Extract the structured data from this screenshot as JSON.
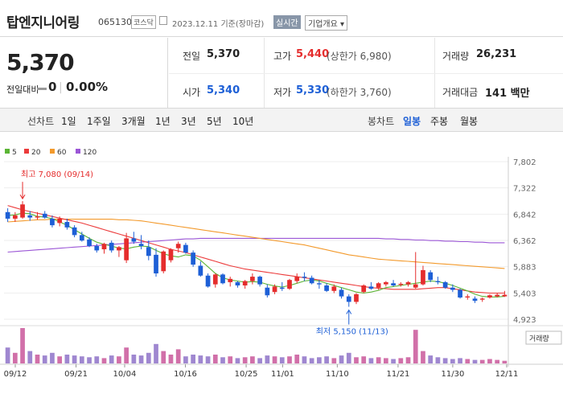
{
  "header": {
    "name": "탑엔지니어링",
    "code": "065130",
    "market": "코스닥",
    "date": "2023.12.11",
    "date_suffix": "기준(장마감)",
    "realtime_label": "실시간",
    "company_info_label": "기업개요"
  },
  "price": {
    "current": "5,370",
    "diff_label": "전일대비",
    "diff_value": "0",
    "diff_pct": "0.00%"
  },
  "stats": {
    "prev_label": "전일",
    "prev_value": "5,370",
    "high_label": "고가",
    "high_value": "5,440",
    "upper_limit": "(상한가 6,980)",
    "volume_label": "거래량",
    "volume_value": "26,231",
    "open_label": "시가",
    "open_value": "5,340",
    "low_label": "저가",
    "low_value": "5,330",
    "lower_limit": "(하한가 3,760)",
    "amount_label": "거래대금",
    "amount_value": "141 백만"
  },
  "line_chart_tabs": {
    "label": "선차트",
    "items": [
      "1일",
      "1주일",
      "3개월",
      "1년",
      "3년",
      "5년",
      "10년"
    ]
  },
  "candle_tabs": {
    "label": "봉차트",
    "items": [
      "일봉",
      "주봉",
      "월봉"
    ],
    "selected": "일봉"
  },
  "colors": {
    "up": "#e52d2d",
    "down": "#1d5fd6",
    "ma5": "#5bb535",
    "ma20": "#ec3b3b",
    "ma60": "#f39a2c",
    "ma120": "#9b56d6"
  },
  "chart_data": {
    "type": "candlestick",
    "legend": [
      {
        "name": "5",
        "color": "#5bb535"
      },
      {
        "name": "20",
        "color": "#ec3b3b"
      },
      {
        "name": "60",
        "color": "#f39a2c"
      },
      {
        "name": "120",
        "color": "#9b56d6"
      }
    ],
    "y_ticks": [
      "7,802",
      "7,322",
      "6,842",
      "6,362",
      "5,883",
      "5,403",
      "4,923"
    ],
    "ylim": [
      4923,
      7802
    ],
    "x_ticks": [
      "09/12",
      "09/21",
      "10/04",
      "10/16",
      "10/25",
      "11/01",
      "11/10",
      "11/21",
      "11/30",
      "12/11"
    ],
    "max_annotation": "최고 7,080 (09/14)",
    "min_annotation": "최저 5,150 (11/13)",
    "volume_label": "거래량",
    "candles": [
      [
        6880,
        6950,
        6700,
        6760
      ],
      [
        6760,
        6880,
        6700,
        6820
      ],
      [
        6780,
        7080,
        6760,
        7020
      ],
      [
        6820,
        6900,
        6720,
        6780
      ],
      [
        6780,
        6880,
        6740,
        6800
      ],
      [
        6850,
        6900,
        6760,
        6780
      ],
      [
        6760,
        6820,
        6600,
        6640
      ],
      [
        6680,
        6800,
        6620,
        6760
      ],
      [
        6700,
        6760,
        6560,
        6600
      ],
      [
        6600,
        6640,
        6420,
        6460
      ],
      [
        6460,
        6520,
        6340,
        6360
      ],
      [
        6380,
        6420,
        6240,
        6260
      ],
      [
        6260,
        6300,
        6140,
        6180
      ],
      [
        6200,
        6320,
        6120,
        6300
      ],
      [
        6320,
        6360,
        6140,
        6180
      ],
      [
        6180,
        6260,
        6060,
        6240
      ],
      [
        6000,
        6500,
        5950,
        6400
      ],
      [
        6400,
        6520,
        6300,
        6340
      ],
      [
        6300,
        6460,
        6200,
        6260
      ],
      [
        6240,
        6360,
        6000,
        6080
      ],
      [
        6100,
        6220,
        5700,
        5760
      ],
      [
        5800,
        6180,
        5760,
        6160
      ],
      [
        6000,
        6220,
        5960,
        6200
      ],
      [
        6220,
        6340,
        6140,
        6300
      ],
      [
        6280,
        6320,
        6120,
        6140
      ],
      [
        6140,
        6180,
        5880,
        5920
      ],
      [
        5900,
        5980,
        5700,
        5720
      ],
      [
        5720,
        5760,
        5500,
        5520
      ],
      [
        5560,
        5760,
        5500,
        5740
      ],
      [
        5740,
        5760,
        5560,
        5580
      ],
      [
        5600,
        5700,
        5520,
        5660
      ],
      [
        5600,
        5620,
        5500,
        5540
      ],
      [
        5540,
        5640,
        5480,
        5620
      ],
      [
        5620,
        5760,
        5560,
        5700
      ],
      [
        5700,
        5720,
        5520,
        5560
      ],
      [
        5500,
        5560,
        5320,
        5360
      ],
      [
        5420,
        5560,
        5380,
        5520
      ],
      [
        5500,
        5600,
        5440,
        5480
      ],
      [
        5480,
        5660,
        5460,
        5640
      ],
      [
        5620,
        5760,
        5580,
        5700
      ],
      [
        5700,
        5780,
        5620,
        5680
      ],
      [
        5680,
        5720,
        5560,
        5580
      ],
      [
        5580,
        5640,
        5480,
        5560
      ],
      [
        5540,
        5580,
        5420,
        5440
      ],
      [
        5440,
        5560,
        5400,
        5520
      ],
      [
        5460,
        5500,
        5300,
        5340
      ],
      [
        5340,
        5380,
        5150,
        5240
      ],
      [
        5240,
        5400,
        5200,
        5380
      ],
      [
        5420,
        5560,
        5400,
        5540
      ],
      [
        5520,
        5600,
        5460,
        5480
      ],
      [
        5500,
        5600,
        5460,
        5580
      ],
      [
        5560,
        5620,
        5520,
        5600
      ],
      [
        5580,
        5640,
        5520,
        5540
      ],
      [
        5550,
        5600,
        5520,
        5570
      ],
      [
        5560,
        5620,
        5520,
        5600
      ],
      [
        5500,
        6150,
        5480,
        5560
      ],
      [
        5560,
        5900,
        5540,
        5820
      ],
      [
        5780,
        5820,
        5600,
        5640
      ],
      [
        5620,
        5700,
        5560,
        5600
      ],
      [
        5600,
        5620,
        5480,
        5500
      ],
      [
        5500,
        5560,
        5420,
        5460
      ],
      [
        5460,
        5480,
        5300,
        5320
      ],
      [
        5320,
        5380,
        5280,
        5340
      ],
      [
        5300,
        5340,
        5220,
        5260
      ],
      [
        5280,
        5320,
        5240,
        5300
      ],
      [
        5320,
        5380,
        5300,
        5360
      ],
      [
        5340,
        5400,
        5320,
        5370
      ],
      [
        5340,
        5440,
        5330,
        5370
      ]
    ],
    "volumes": [
      18,
      12,
      40,
      14,
      10,
      9,
      12,
      8,
      10,
      9,
      8,
      7,
      8,
      6,
      9,
      8,
      18,
      10,
      9,
      12,
      22,
      14,
      10,
      16,
      8,
      10,
      9,
      8,
      10,
      7,
      8,
      6,
      7,
      8,
      6,
      9,
      8,
      7,
      8,
      10,
      8,
      6,
      7,
      8,
      6,
      9,
      12,
      7,
      8,
      6,
      7,
      6,
      5,
      6,
      7,
      38,
      14,
      9,
      7,
      6,
      5,
      6,
      5,
      4,
      4,
      5,
      4,
      3
    ],
    "ma5": [
      6820,
      6830,
      6860,
      6850,
      6800,
      6790,
      6760,
      6700,
      6640,
      6560,
      6480,
      6400,
      6330,
      6290,
      6260,
      6220,
      6210,
      6240,
      6260,
      6250,
      6180,
      6120,
      6080,
      6060,
      6100,
      6080,
      6000,
      5880,
      5760,
      5680,
      5640,
      5620,
      5600,
      5610,
      5600,
      5560,
      5530,
      5510,
      5540,
      5580,
      5620,
      5640,
      5620,
      5580,
      5540,
      5500,
      5460,
      5420,
      5400,
      5420,
      5450,
      5500,
      5520,
      5540,
      5560,
      5580,
      5600,
      5620,
      5610,
      5580,
      5540,
      5490,
      5440,
      5380,
      5340,
      5330,
      5330,
      5340
    ],
    "ma20": [
      7000,
      6960,
      6920,
      6890,
      6860,
      6830,
      6800,
      6770,
      6740,
      6710,
      6680,
      6640,
      6600,
      6560,
      6520,
      6480,
      6440,
      6400,
      6360,
      6320,
      6280,
      6240,
      6200,
      6170,
      6140,
      6100,
      6060,
      6020,
      5980,
      5940,
      5900,
      5870,
      5840,
      5820,
      5800,
      5780,
      5760,
      5740,
      5720,
      5700,
      5680,
      5660,
      5640,
      5620,
      5600,
      5580,
      5560,
      5540,
      5520,
      5500,
      5490,
      5480,
      5470,
      5470,
      5470,
      5470,
      5480,
      5490,
      5500,
      5500,
      5480,
      5460,
      5440,
      5420,
      5410,
      5400,
      5400,
      5400
    ],
    "ma60": [
      6700,
      6710,
      6720,
      6730,
      6740,
      6740,
      6750,
      6750,
      6750,
      6750,
      6750,
      6750,
      6750,
      6750,
      6750,
      6740,
      6740,
      6730,
      6720,
      6700,
      6680,
      6660,
      6640,
      6620,
      6600,
      6580,
      6560,
      6540,
      6520,
      6500,
      6480,
      6460,
      6440,
      6420,
      6400,
      6380,
      6360,
      6340,
      6320,
      6300,
      6280,
      6250,
      6220,
      6190,
      6160,
      6130,
      6100,
      6080,
      6060,
      6040,
      6020,
      6010,
      6000,
      5990,
      5980,
      5970,
      5960,
      5950,
      5940,
      5930,
      5920,
      5910,
      5900,
      5890,
      5880,
      5870,
      5860,
      5850
    ],
    "ma120": [
      6150,
      6160,
      6170,
      6180,
      6190,
      6200,
      6210,
      6220,
      6230,
      6240,
      6250,
      6260,
      6270,
      6280,
      6290,
      6300,
      6310,
      6320,
      6330,
      6340,
      6350,
      6360,
      6370,
      6380,
      6390,
      6390,
      6400,
      6400,
      6400,
      6400,
      6400,
      6400,
      6400,
      6400,
      6400,
      6400,
      6400,
      6400,
      6400,
      6400,
      6400,
      6400,
      6400,
      6400,
      6400,
      6400,
      6400,
      6400,
      6400,
      6400,
      6400,
      6390,
      6390,
      6380,
      6380,
      6370,
      6370,
      6360,
      6360,
      6350,
      6350,
      6340,
      6340,
      6330,
      6330,
      6320,
      6320,
      6320
    ]
  }
}
